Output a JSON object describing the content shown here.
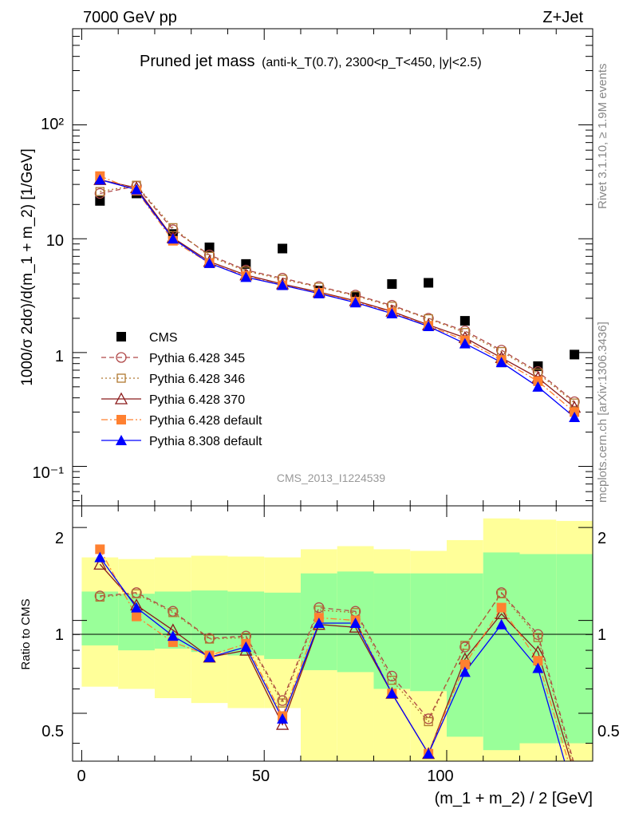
{
  "header": {
    "left": "7000 GeV pp",
    "right": "Z+Jet",
    "side_rivet": "Rivet 3.1.10, ≥ 1.9M events",
    "side_mcplots": "mcplots.cern.ch [arXiv:1306.3436]",
    "analysis_id": "CMS_2013_I1224539"
  },
  "chart_data": [
    {
      "type": "scatter",
      "panel": "main",
      "title": "Pruned jet mass",
      "subtitle": "(anti-k_T(0.7), 2300<p_T<450, |y|<2.5)",
      "ylabel": "1000/σ 2dσ)/d(m_1 + m_2) [1/GeV]",
      "xlabel": "",
      "xlim": [
        -2.5,
        140
      ],
      "ylim": [
        0.045,
        700
      ],
      "yscale": "log",
      "ytick_labels": [
        "10⁻¹",
        "1",
        "10",
        "10²"
      ],
      "legend_position": "lower-left",
      "x": [
        5,
        15,
        25,
        35,
        45,
        55,
        65,
        75,
        85,
        95,
        105,
        115,
        125,
        135
      ],
      "series": [
        {
          "name": "CMS",
          "color": "#000000",
          "marker": "square",
          "line": "none",
          "values": [
            21.5,
            25.0,
            11.0,
            8.4,
            6.0,
            8.2,
            3.5,
            3.1,
            4.0,
            4.1,
            1.9,
            0.82,
            0.76,
            0.96
          ]
        },
        {
          "name": "Pythia 6.428 345",
          "color": "#b04848",
          "marker": "circle-open",
          "line": "dashed",
          "values": [
            25.0,
            29.0,
            12.0,
            7.2,
            5.3,
            4.5,
            3.8,
            3.2,
            2.6,
            2.0,
            1.55,
            1.05,
            0.68,
            0.37
          ]
        },
        {
          "name": "Pythia 6.428 346",
          "color": "#b07830",
          "marker": "square-open",
          "line": "dotted",
          "values": [
            26.0,
            29.5,
            12.5,
            7.0,
            5.2,
            4.4,
            3.75,
            3.15,
            2.55,
            1.98,
            1.5,
            1.02,
            0.66,
            0.36
          ]
        },
        {
          "name": "Pythia 6.428 370",
          "color": "#8b1a1a",
          "marker": "triangle-open",
          "line": "solid",
          "values": [
            33.0,
            28.0,
            10.2,
            6.3,
            4.8,
            4.0,
            3.4,
            2.85,
            2.3,
            1.75,
            1.35,
            0.9,
            0.6,
            0.33
          ]
        },
        {
          "name": "Pythia 6.428 default",
          "color": "#ff8030",
          "marker": "square",
          "line": "dashdot",
          "values": [
            35.5,
            26.5,
            9.6,
            6.1,
            4.7,
            3.9,
            3.35,
            2.8,
            2.25,
            1.72,
            1.28,
            0.86,
            0.56,
            0.3
          ]
        },
        {
          "name": "Pythia 8.308 default",
          "color": "#0000ff",
          "marker": "triangle",
          "line": "solid",
          "values": [
            33.0,
            27.0,
            10.0,
            6.1,
            4.6,
            3.9,
            3.3,
            2.75,
            2.2,
            1.7,
            1.2,
            0.82,
            0.5,
            0.27
          ]
        }
      ]
    },
    {
      "type": "line",
      "panel": "ratio",
      "ylabel": "Ratio to CMS",
      "xlabel": "(m_1 + m_2) / 2 [GeV]",
      "xlim": [
        -2.5,
        140
      ],
      "ylim": [
        0.35,
        2.35
      ],
      "yscale": "log",
      "xtick_labels": [
        "0",
        "50",
        "100"
      ],
      "ytick_labels": [
        "0.5",
        "1",
        "2"
      ],
      "reference_line": 1,
      "bands": {
        "x_edges": [
          0,
          10,
          20,
          30,
          40,
          50,
          60,
          70,
          80,
          90,
          100,
          110,
          120,
          130,
          140
        ],
        "yellow_lo": [
          0.61,
          0.6,
          0.56,
          0.54,
          0.52,
          0.52,
          0.3,
          0.3,
          0.3,
          0.3,
          0.3,
          0.3,
          0.3,
          0.3
        ],
        "yellow_hi": [
          1.6,
          1.58,
          1.6,
          1.62,
          1.61,
          1.6,
          1.7,
          1.74,
          1.7,
          1.68,
          1.82,
          2.14,
          2.12,
          2.1
        ],
        "green_lo": [
          0.83,
          0.8,
          0.81,
          0.79,
          0.77,
          0.75,
          0.69,
          0.68,
          0.6,
          0.59,
          0.42,
          0.38,
          0.4,
          0.4
        ],
        "green_hi": [
          1.24,
          1.22,
          1.24,
          1.25,
          1.24,
          1.23,
          1.42,
          1.44,
          1.42,
          1.42,
          1.42,
          1.66,
          1.64,
          1.64
        ]
      },
      "x": [
        5,
        15,
        25,
        35,
        45,
        55,
        65,
        75,
        85,
        95,
        105,
        115,
        125,
        135
      ],
      "series": [
        {
          "name": "Pythia 6.428 345",
          "color": "#b04848",
          "marker": "circle-open",
          "line": "dashed",
          "values": [
            1.2,
            1.23,
            1.07,
            0.875,
            0.89,
            0.55,
            1.1,
            1.07,
            0.66,
            0.48,
            0.82,
            1.23,
            0.9,
            0.34
          ]
        },
        {
          "name": "Pythia 6.428 346",
          "color": "#b07830",
          "marker": "square-open",
          "line": "dotted",
          "values": [
            1.19,
            1.22,
            1.06,
            0.87,
            0.88,
            0.54,
            1.08,
            1.06,
            0.64,
            0.47,
            0.83,
            1.22,
            0.88,
            0.33
          ]
        },
        {
          "name": "Pythia 6.428 370",
          "color": "#8b1a1a",
          "marker": "triangle-open",
          "line": "solid",
          "values": [
            1.52,
            1.12,
            0.93,
            0.76,
            0.8,
            0.46,
            0.97,
            0.95,
            0.58,
            0.37,
            0.75,
            1.05,
            0.79,
            0.32
          ]
        },
        {
          "name": "Pythia 6.428 default",
          "color": "#ff8030",
          "marker": "square",
          "line": "dashdot",
          "values": [
            1.7,
            1.03,
            0.85,
            0.77,
            0.84,
            0.49,
            1.02,
            1.0,
            0.58,
            0.37,
            0.72,
            1.1,
            0.74,
            0.3
          ]
        },
        {
          "name": "Pythia 8.308 default",
          "color": "#0000ff",
          "marker": "triangle",
          "line": "solid",
          "values": [
            1.6,
            1.1,
            0.89,
            0.76,
            0.82,
            0.48,
            0.98,
            0.98,
            0.58,
            0.37,
            0.68,
            0.97,
            0.7,
            0.27
          ]
        }
      ]
    }
  ]
}
